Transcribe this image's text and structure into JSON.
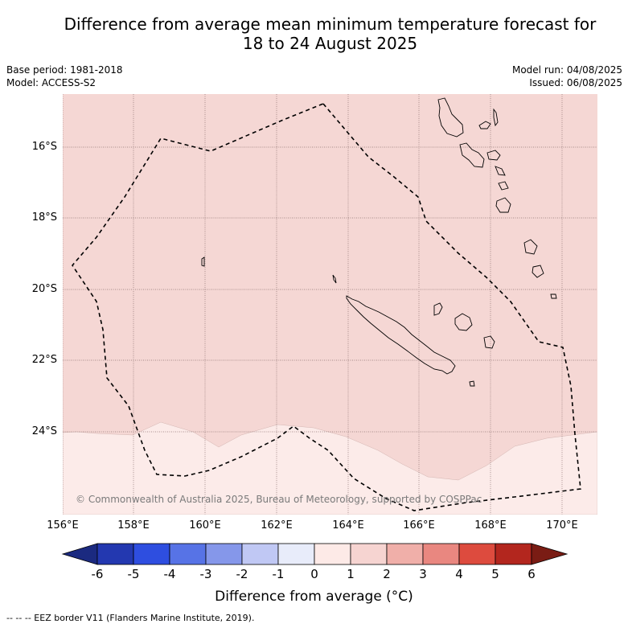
{
  "title_line1": "Difference from average mean minimum temperature forecast for",
  "title_line2": "18 to 24 August 2025",
  "base_period": "Base period: 1981-2018",
  "model": "Model: ACCESS-S2",
  "model_run": "Model run: 04/08/2025",
  "issued": "Issued: 06/08/2025",
  "copyright": "© Commonwealth of Australia 2025, Bureau of Meteorology, supported by COSPPac",
  "lat_labels": [
    "16°S",
    "18°S",
    "20°S",
    "22°S",
    "24°S"
  ],
  "lon_labels": [
    "156°E",
    "158°E",
    "160°E",
    "162°E",
    "164°E",
    "166°E",
    "168°E",
    "170°E"
  ],
  "colorbar": {
    "ticks": [
      "-6",
      "-5",
      "-4",
      "-3",
      "-2",
      "-1",
      "0",
      "1",
      "2",
      "3",
      "4",
      "5",
      "6"
    ],
    "colors": [
      "#1b2a80",
      "#2338b0",
      "#2e4ee0",
      "#5773e6",
      "#8597ea",
      "#c0c8f4",
      "#e8ecfa",
      "#fdeae7",
      "#f6d4d1",
      "#f0afa9",
      "#e98780",
      "#dd4b3e",
      "#b3261e",
      "#7a1c14"
    ],
    "label": "Difference from average (°C)"
  },
  "footnote": "-- -- -- EEZ border V11 (Flanders Marine Institute, 2019).",
  "legend": {
    "eez_style": "dashed"
  },
  "colors": {
    "band_0_to_1": "#fcebe9",
    "band_1_to_2": "#f5d7d4"
  }
}
